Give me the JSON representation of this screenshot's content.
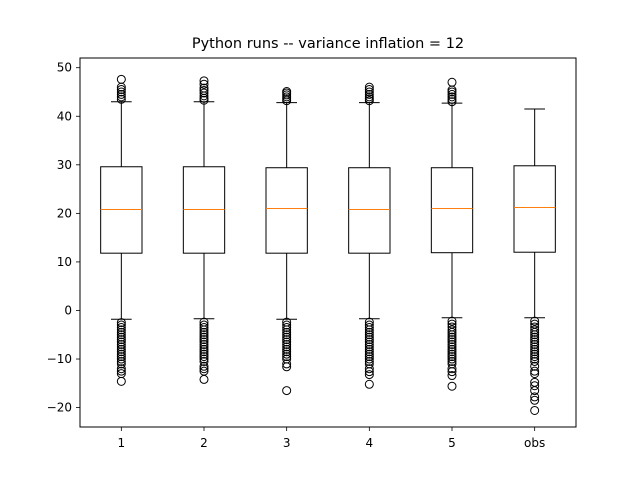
{
  "chart_data": {
    "type": "box",
    "title": "Python runs -- variance inflation = 12",
    "xlabel": "",
    "ylabel": "",
    "ylim": [
      -24,
      52
    ],
    "yticks": [
      -20,
      -10,
      0,
      10,
      20,
      30,
      40,
      50
    ],
    "ytick_labels": [
      "−20",
      "−10",
      "0",
      "10",
      "20",
      "30",
      "40",
      "50"
    ],
    "grid": false,
    "categories": [
      "1",
      "2",
      "3",
      "4",
      "5",
      "obs"
    ],
    "series": [
      {
        "q1": 11.8,
        "median": 20.8,
        "q3": 29.6,
        "whisker_low": -1.8,
        "whisker_high": 43.0,
        "outliers": [
          43.5,
          44.0,
          44.5,
          45.0,
          45.5,
          46.0,
          47.6,
          -2.5,
          -3.0,
          -3.5,
          -4.0,
          -4.5,
          -5.0,
          -5.5,
          -6.0,
          -6.5,
          -7.0,
          -7.5,
          -8.0,
          -8.5,
          -9.0,
          -9.5,
          -10.0,
          -10.5,
          -11.0,
          -12.0,
          -12.5,
          -13.0,
          -14.6
        ]
      },
      {
        "q1": 11.8,
        "median": 20.8,
        "q3": 29.6,
        "whisker_low": -1.7,
        "whisker_high": 43.0,
        "outliers": [
          43.3,
          43.7,
          44.2,
          44.8,
          45.3,
          45.8,
          46.6,
          47.3,
          -2.4,
          -3.0,
          -3.5,
          -4.0,
          -4.5,
          -5.0,
          -5.5,
          -6.0,
          -6.5,
          -7.0,
          -7.5,
          -8.0,
          -8.5,
          -9.0,
          -9.5,
          -10.0,
          -10.5,
          -11.5,
          -12.0,
          -12.5,
          -14.2
        ]
      },
      {
        "q1": 11.8,
        "median": 21.0,
        "q3": 29.4,
        "whisker_low": -1.8,
        "whisker_high": 42.8,
        "outliers": [
          43.2,
          43.6,
          44.0,
          44.4,
          44.8,
          45.1,
          -2.4,
          -3.0,
          -3.5,
          -4.0,
          -4.5,
          -5.0,
          -5.5,
          -6.0,
          -6.5,
          -7.0,
          -7.5,
          -8.0,
          -8.5,
          -9.0,
          -9.5,
          -10.0,
          -11.0,
          -11.6,
          -16.5
        ]
      },
      {
        "q1": 11.8,
        "median": 20.8,
        "q3": 29.4,
        "whisker_low": -1.7,
        "whisker_high": 42.8,
        "outliers": [
          43.2,
          43.6,
          44.0,
          44.5,
          45.0,
          45.5,
          46.0,
          -2.4,
          -3.0,
          -3.5,
          -4.0,
          -4.5,
          -5.0,
          -5.5,
          -6.0,
          -6.5,
          -7.0,
          -7.5,
          -8.0,
          -8.5,
          -9.0,
          -9.5,
          -10.0,
          -10.5,
          -11.0,
          -12.0,
          -12.6,
          -13.2,
          -15.2
        ]
      },
      {
        "q1": 11.9,
        "median": 21.0,
        "q3": 29.4,
        "whisker_low": -1.5,
        "whisker_high": 42.7,
        "outliers": [
          43.0,
          43.5,
          44.0,
          44.5,
          45.0,
          45.4,
          47.0,
          -2.2,
          -2.8,
          -3.4,
          -4.0,
          -4.5,
          -5.0,
          -5.5,
          -6.0,
          -6.5,
          -7.0,
          -7.5,
          -8.0,
          -8.5,
          -9.0,
          -9.5,
          -10.0,
          -10.5,
          -11.0,
          -12.0,
          -12.6,
          -13.4,
          -15.6
        ]
      },
      {
        "q1": 12.0,
        "median": 21.2,
        "q3": 29.8,
        "whisker_low": -1.5,
        "whisker_high": 41.5,
        "outliers": [
          -2.2,
          -2.8,
          -3.4,
          -4.0,
          -4.5,
          -5.0,
          -5.5,
          -6.0,
          -6.5,
          -7.0,
          -7.5,
          -8.0,
          -8.5,
          -9.0,
          -9.5,
          -10.0,
          -10.5,
          -11.5,
          -12.5,
          -13.0,
          -14.8,
          -15.5,
          -16.5,
          -17.8,
          -18.5,
          -20.6
        ]
      }
    ]
  },
  "colors": {
    "box": "#000000",
    "median": "#ff7f0e",
    "background": "#ffffff"
  }
}
